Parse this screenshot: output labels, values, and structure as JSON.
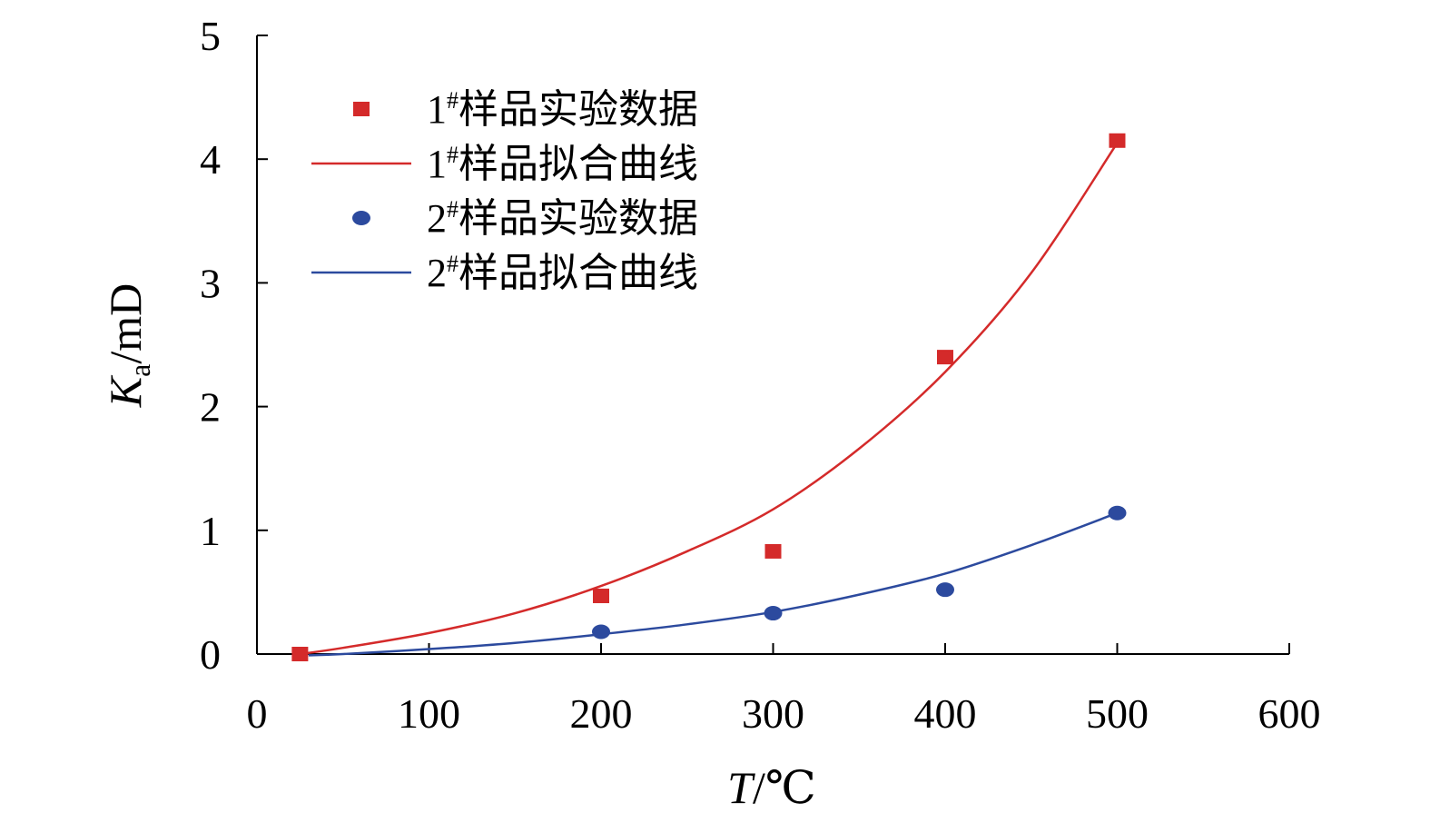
{
  "chart_data": {
    "type": "scatter",
    "xlabel": {
      "var": "T",
      "unit": "/℃"
    },
    "ylabel": {
      "var": "K",
      "sub": "a",
      "unit": "/mD"
    },
    "xlim": [
      0,
      600
    ],
    "ylim": [
      0,
      5
    ],
    "xticks": [
      "0",
      "100",
      "200",
      "300",
      "400",
      "500",
      "600"
    ],
    "yticks": [
      "0",
      "1",
      "2",
      "3",
      "4",
      "5"
    ],
    "legend_position": "top-left",
    "series": [
      {
        "name": "1#样品实验数据",
        "label": {
          "num": "1",
          "sup": "#",
          "text": "样品实验数据"
        },
        "kind": "scatter",
        "marker": "square",
        "color": "#d42a2a",
        "x": [
          25,
          200,
          300,
          400,
          500
        ],
        "y": [
          0.0,
          0.47,
          0.83,
          2.4,
          4.15
        ]
      },
      {
        "name": "1#样品拟合曲线",
        "label": {
          "num": "1",
          "sup": "#",
          "text": "样品拟合曲线"
        },
        "kind": "line",
        "color": "#d42a2a",
        "x": [
          25,
          50,
          100,
          150,
          200,
          250,
          300,
          350,
          400,
          450,
          500
        ],
        "y": [
          0.0,
          0.05,
          0.17,
          0.33,
          0.55,
          0.83,
          1.17,
          1.66,
          2.28,
          3.08,
          4.13
        ]
      },
      {
        "name": "2#样品实验数据",
        "label": {
          "num": "2",
          "sup": "#",
          "text": "样品实验数据"
        },
        "kind": "scatter",
        "marker": "circle",
        "color": "#2c4a9e",
        "x": [
          200,
          300,
          400,
          500
        ],
        "y": [
          0.18,
          0.33,
          0.52,
          1.14
        ]
      },
      {
        "name": "2#样品拟合曲线",
        "label": {
          "num": "2",
          "sup": "#",
          "text": "样品拟合曲线"
        },
        "kind": "line",
        "color": "#2c4a9e",
        "x": [
          30,
          50,
          100,
          150,
          200,
          250,
          300,
          350,
          400,
          450,
          500
        ],
        "y": [
          -0.01,
          0.0,
          0.04,
          0.09,
          0.16,
          0.24,
          0.34,
          0.48,
          0.65,
          0.88,
          1.14
        ]
      }
    ]
  }
}
